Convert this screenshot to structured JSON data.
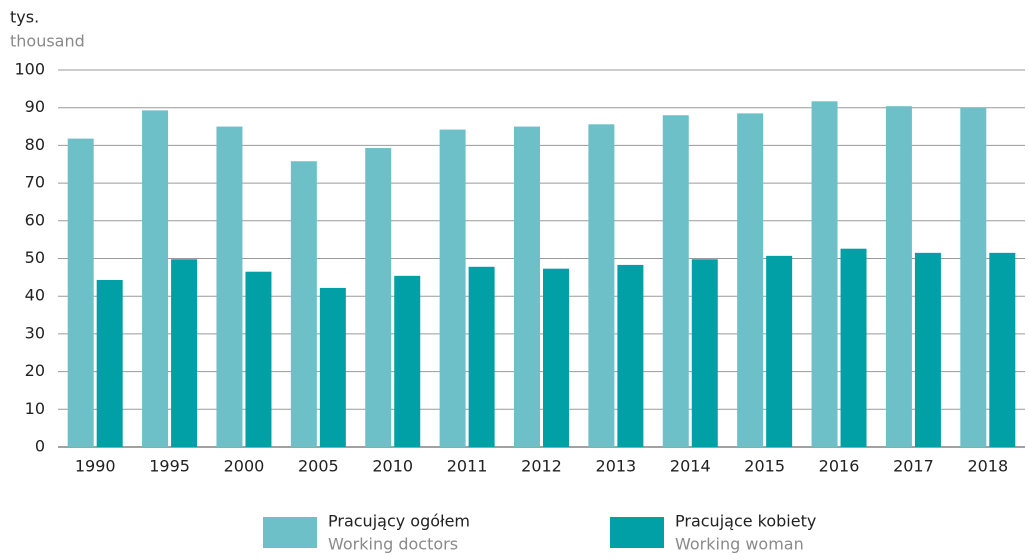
{
  "chart_data": {
    "type": "bar",
    "y_label": "tys.",
    "y_label_en": "thousand",
    "categories": [
      "1990",
      "1995",
      "2000",
      "2005",
      "2010",
      "2011",
      "2012",
      "2013",
      "2014",
      "2015",
      "2016",
      "2017",
      "2018"
    ],
    "series": [
      {
        "name": "Pracujący ogółem",
        "name_en": "Working doctors",
        "color": "#6ec0c8",
        "values": [
          81.8,
          89.3,
          85,
          75.8,
          79.3,
          84.2,
          85,
          85.6,
          88,
          88.5,
          91.7,
          90.4,
          90
        ]
      },
      {
        "name": "Pracujące kobiety",
        "name_en": "Working woman",
        "color": "#00a0a6",
        "values": [
          44.3,
          49.8,
          46.5,
          42.2,
          45.4,
          47.8,
          47.3,
          48.3,
          49.8,
          50.7,
          52.6,
          51.5,
          51.5
        ]
      }
    ],
    "ylim": [
      0,
      100
    ],
    "yticks": [
      0,
      10,
      20,
      30,
      40,
      50,
      60,
      70,
      80,
      90,
      100
    ],
    "grid": true
  }
}
